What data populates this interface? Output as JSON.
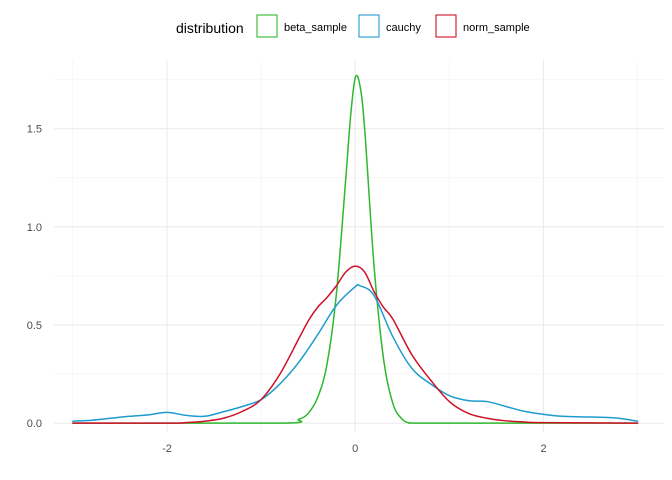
{
  "chart_data": {
    "type": "line",
    "xlim": [
      -3.0,
      3.0
    ],
    "ylim": [
      0,
      1.8
    ],
    "x_ticks": [
      -2,
      0,
      2
    ],
    "x_tick_labels": [
      "-2",
      "0",
      "2"
    ],
    "y_ticks": [
      0.0,
      0.5,
      1.0,
      1.5
    ],
    "y_tick_labels": [
      "0.0",
      "0.5",
      "1.0",
      "1.5"
    ],
    "grid": true,
    "legend": {
      "title": "distribution",
      "position": "top"
    },
    "series": [
      {
        "name": "beta_sample",
        "color": "#2db82d",
        "x": [
          -3.0,
          -0.8,
          -0.6,
          -0.5,
          -0.4,
          -0.3,
          -0.2,
          -0.1,
          -0.05,
          0.0,
          0.05,
          0.1,
          0.2,
          0.3,
          0.4,
          0.5,
          0.6,
          0.8,
          3.0
        ],
        "y": [
          0.0,
          0.0,
          0.02,
          0.05,
          0.13,
          0.3,
          0.66,
          1.25,
          1.56,
          1.76,
          1.72,
          1.5,
          0.8,
          0.33,
          0.1,
          0.02,
          0.0,
          0.0,
          0.0
        ]
      },
      {
        "name": "cauchy",
        "color": "#1f9bcf",
        "x": [
          -3.0,
          -2.8,
          -2.6,
          -2.4,
          -2.2,
          -2.0,
          -1.8,
          -1.6,
          -1.4,
          -1.2,
          -1.0,
          -0.8,
          -0.6,
          -0.4,
          -0.2,
          0.0,
          0.05,
          0.2,
          0.4,
          0.6,
          0.8,
          1.0,
          1.2,
          1.4,
          1.6,
          1.8,
          2.0,
          2.2,
          2.4,
          2.6,
          2.8,
          3.0
        ],
        "y": [
          0.01,
          0.015,
          0.025,
          0.035,
          0.042,
          0.055,
          0.04,
          0.035,
          0.058,
          0.085,
          0.12,
          0.2,
          0.31,
          0.45,
          0.6,
          0.695,
          0.7,
          0.65,
          0.44,
          0.28,
          0.2,
          0.14,
          0.115,
          0.11,
          0.085,
          0.06,
          0.045,
          0.035,
          0.032,
          0.03,
          0.025,
          0.01
        ]
      },
      {
        "name": "norm_sample",
        "color": "#cf1027",
        "x": [
          -3.0,
          -2.0,
          -1.8,
          -1.6,
          -1.4,
          -1.2,
          -1.0,
          -0.8,
          -0.6,
          -0.5,
          -0.4,
          -0.3,
          -0.2,
          -0.1,
          0.0,
          0.1,
          0.2,
          0.3,
          0.4,
          0.6,
          0.8,
          1.0,
          1.2,
          1.4,
          1.6,
          1.8,
          2.0,
          3.0
        ],
        "y": [
          0.0,
          0.0,
          0.003,
          0.01,
          0.025,
          0.06,
          0.12,
          0.25,
          0.43,
          0.52,
          0.59,
          0.64,
          0.7,
          0.77,
          0.8,
          0.77,
          0.67,
          0.59,
          0.53,
          0.35,
          0.22,
          0.11,
          0.05,
          0.025,
          0.012,
          0.006,
          0.003,
          0.0
        ]
      }
    ]
  }
}
